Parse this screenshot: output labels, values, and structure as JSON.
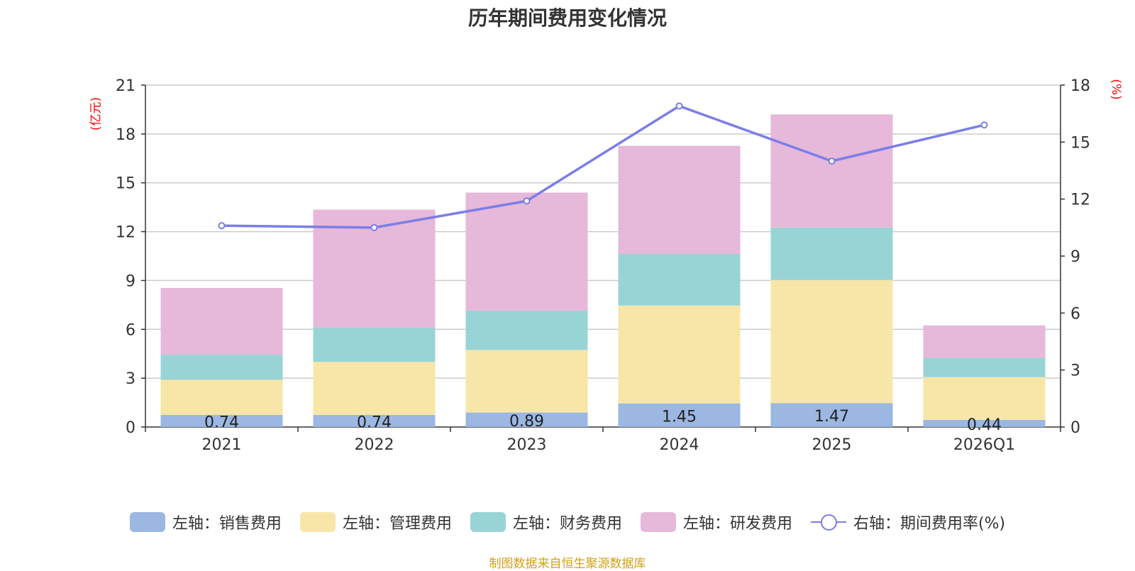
{
  "chart_data": {
    "type": "bar",
    "title": "历年期间费用变化情况",
    "categories": [
      "2021",
      "2022",
      "2023",
      "2024",
      "2025",
      "2026Q1"
    ],
    "left_axis": {
      "unit": "(亿元)",
      "ylim": [
        0,
        21
      ],
      "ticks": [
        0,
        3,
        6,
        9,
        12,
        15,
        18,
        21
      ]
    },
    "right_axis": {
      "unit": "(%)",
      "ylim": [
        0,
        18
      ],
      "ticks": [
        0,
        3,
        6,
        9,
        12,
        15,
        18
      ]
    },
    "series": [
      {
        "name": "左轴：销售费用",
        "axis": "left",
        "type": "bar",
        "color": "#9bb7e2",
        "values": [
          0.74,
          0.74,
          0.89,
          1.45,
          1.47,
          0.44
        ],
        "labels": [
          "0.74",
          "0.74",
          "0.89",
          "1.45",
          "1.47",
          "0.44"
        ]
      },
      {
        "name": "左轴：管理费用",
        "axis": "left",
        "type": "bar",
        "color": "#f8e6a8",
        "values": [
          2.16,
          3.26,
          3.84,
          6.01,
          7.56,
          2.62
        ]
      },
      {
        "name": "左轴：财务费用",
        "axis": "left",
        "type": "bar",
        "color": "#98d4d6",
        "values": [
          1.54,
          2.11,
          2.42,
          3.17,
          3.22,
          1.19
        ]
      },
      {
        "name": "左轴：研发费用",
        "axis": "left",
        "type": "bar",
        "color": "#e6b8d9",
        "values": [
          4.1,
          7.24,
          7.25,
          6.64,
          6.95,
          1.99
        ]
      },
      {
        "name": "右轴：期间费用率(%)",
        "axis": "right",
        "type": "line",
        "color": "#7b7ee8",
        "values": [
          10.6,
          10.5,
          11.9,
          16.9,
          14.0,
          15.9
        ]
      }
    ],
    "grid": true,
    "legend_position": "bottom"
  },
  "source": "制图数据来自恒生聚源数据库"
}
